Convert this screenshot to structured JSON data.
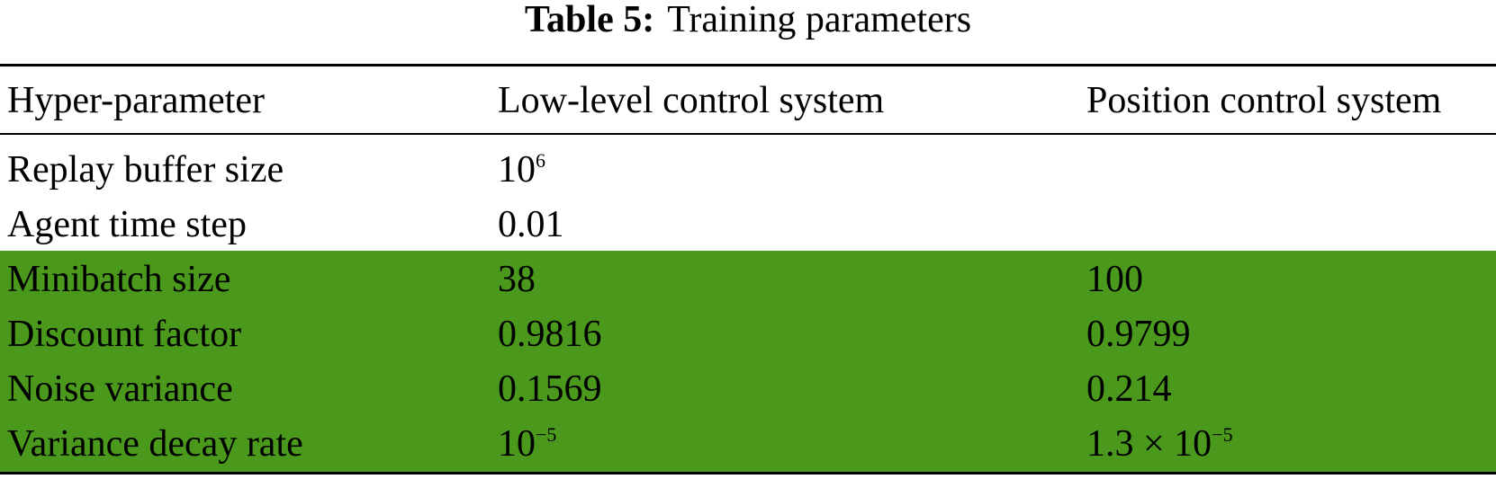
{
  "caption": {
    "label": "Table 5:",
    "text": "Training parameters"
  },
  "table": {
    "header": [
      "Hyper-parameter",
      "Low-level control system",
      "Position control system"
    ],
    "rows": [
      [
        "Replay buffer size",
        {
          "text": "10",
          "sup": "6"
        },
        null
      ],
      [
        "Agent time step",
        "0.01",
        null
      ],
      [
        "Minibatch size",
        "38",
        "100"
      ],
      [
        "Discount factor",
        "0.9816",
        "0.9799"
      ],
      [
        "Noise variance",
        "0.1569",
        "0.214"
      ],
      [
        "Variance decay rate",
        {
          "text": "10",
          "sup": "−5"
        },
        {
          "text": "1.3 × 10",
          "sup": "−5"
        }
      ]
    ],
    "highlight_rows": [
      2,
      3,
      4,
      5
    ],
    "highlight_color": "#4a991c"
  }
}
